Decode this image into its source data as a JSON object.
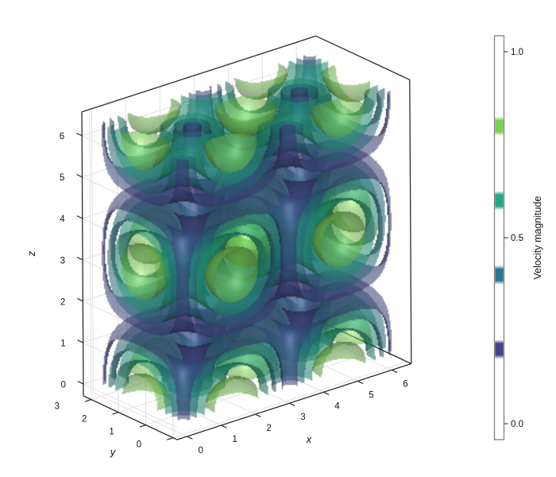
{
  "chart_data": {
    "type": "contour-3d",
    "title": "",
    "description": "3D isosurface (contour) plot of Taylor-Green vortex velocity magnitude |V(x,y,z)| = |cos z| * sqrt(sin^2(x)cos^2(y) + cos^2(x)sin^2(y))",
    "axes": {
      "x": {
        "label": "x",
        "range": [
          0,
          6.2832
        ],
        "tick_values": [
          0,
          1,
          2,
          3,
          4,
          5,
          6
        ],
        "ticks": [
          "0",
          "1",
          "2",
          "3",
          "4",
          "5",
          "6"
        ]
      },
      "y": {
        "label": "y",
        "range": [
          0,
          3.1416
        ],
        "tick_values": [
          0,
          1,
          2,
          3
        ],
        "ticks": [
          "0",
          "1",
          "2",
          "3"
        ]
      },
      "z": {
        "label": "z",
        "range": [
          0,
          6.2832
        ],
        "tick_values": [
          0,
          1,
          2,
          3,
          4,
          5,
          6
        ],
        "ticks": [
          "0",
          "1",
          "2",
          "3",
          "4",
          "5",
          "6"
        ]
      }
    },
    "grid": true,
    "isosurfaces": {
      "levels": [
        0.2,
        0.4,
        0.6,
        0.8
      ],
      "colors": [
        "#414487",
        "#2a788e",
        "#22a884",
        "#7ad151"
      ],
      "opacity": 0.55,
      "colormap": "viridis"
    },
    "colorbar": {
      "label": "Velocity magnitude",
      "range": [
        0,
        1
      ],
      "tick_values": [
        1.0,
        0.5,
        0.0
      ],
      "ticks": [
        "1.0",
        "0.5",
        "0.0"
      ]
    }
  },
  "colors": {
    "background": "#ffffff",
    "frame": "#2b2b2b",
    "grid": "#e0e0e0",
    "tick_text": "#111111",
    "colorbar_frame": "#808080"
  }
}
